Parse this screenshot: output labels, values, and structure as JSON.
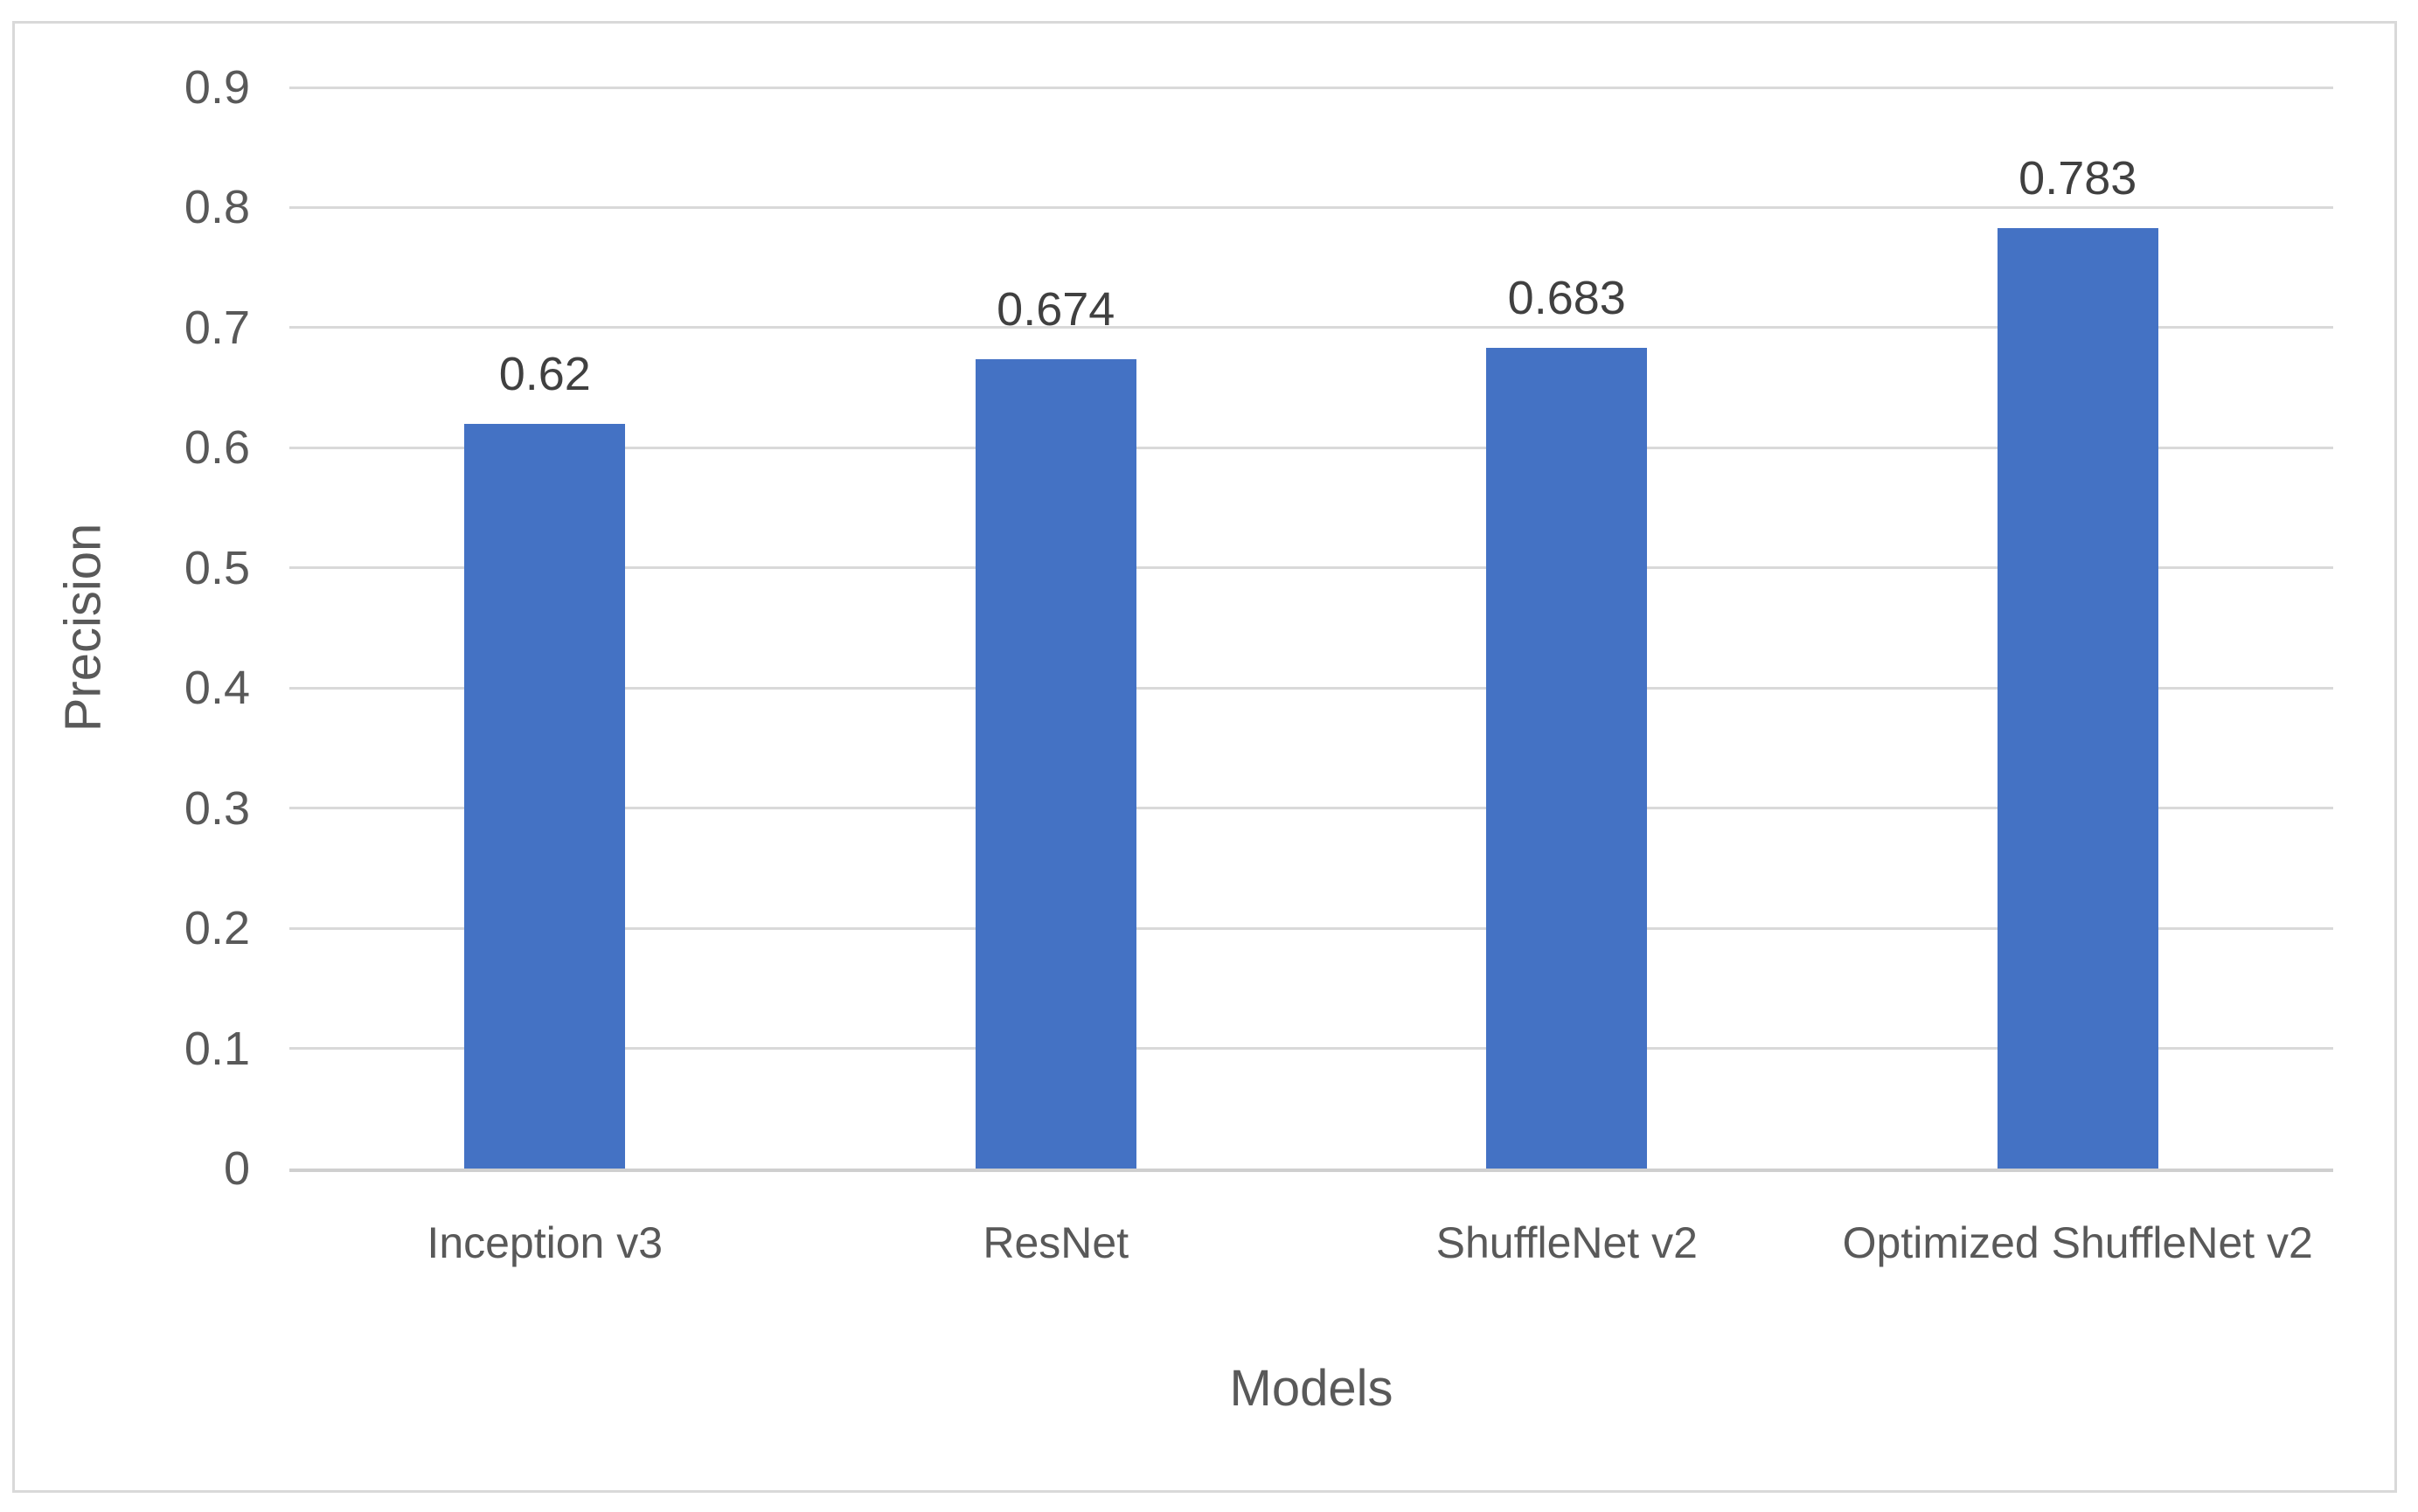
{
  "chart_data": {
    "type": "bar",
    "categories": [
      "Inception v3",
      "ResNet",
      "ShuffleNet v2",
      "Optimized ShuffleNet v2"
    ],
    "values": [
      0.62,
      0.674,
      0.683,
      0.783
    ],
    "data_labels": [
      "0.62",
      "0.674",
      "0.683",
      "0.783"
    ],
    "title": "",
    "xlabel": "Models",
    "ylabel": "Precision",
    "ylim": [
      0,
      0.9
    ],
    "yticks": [
      "0",
      "0.1",
      "0.2",
      "0.3",
      "0.4",
      "0.5",
      "0.6",
      "0.7",
      "0.8",
      "0.9"
    ],
    "grid": true,
    "legend": false,
    "colors": {
      "bar_fill": "#4472c4",
      "gridline": "#d9d9d9",
      "axis_line": "#cfcfcf",
      "frame_border": "#d9d9d9",
      "tick_text": "#595959",
      "axis_title_text": "#595959",
      "data_label_text": "#404040",
      "background": "#ffffff"
    }
  }
}
